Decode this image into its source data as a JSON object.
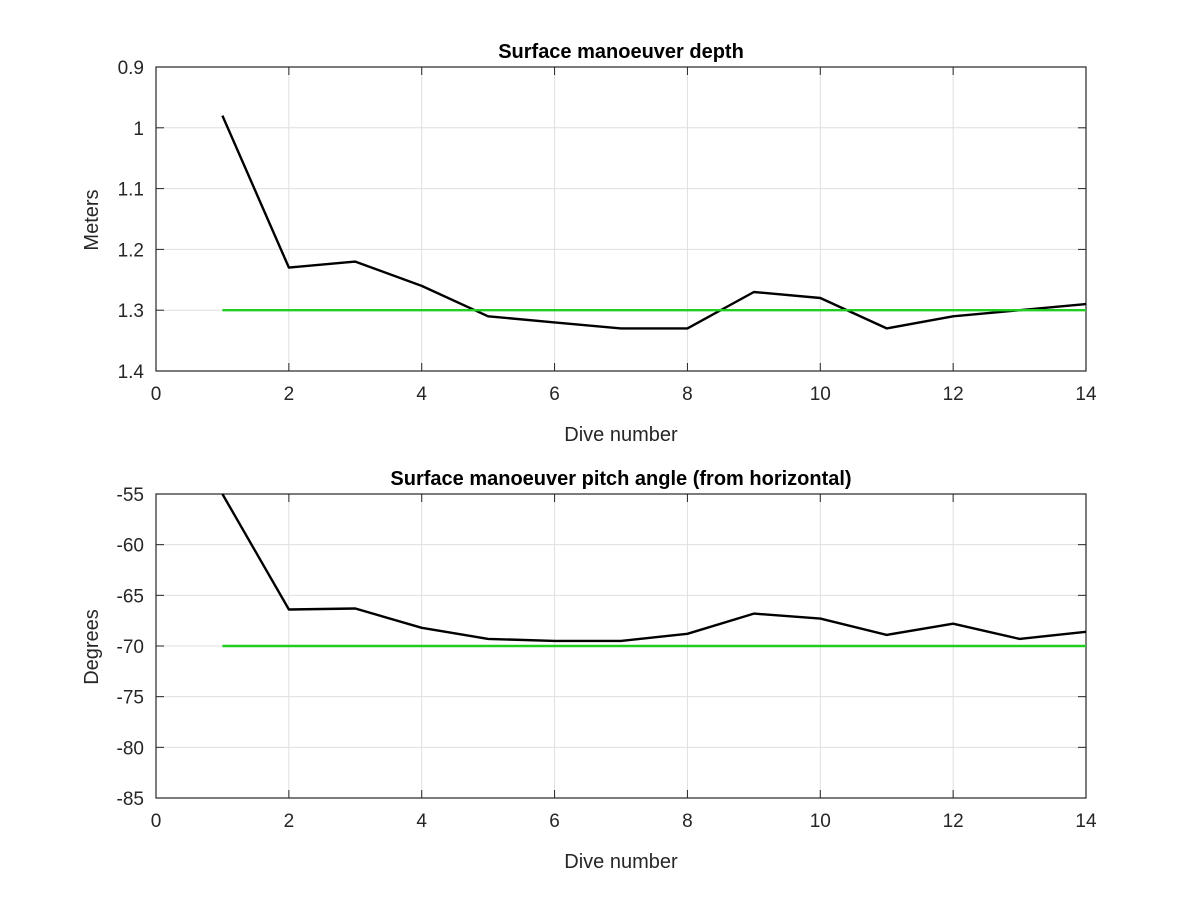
{
  "chart_data": [
    {
      "type": "line",
      "title": "Surface manoeuver depth",
      "xlabel": "Dive number",
      "ylabel": "Meters",
      "xlim": [
        0,
        14
      ],
      "ylim": [
        0.9,
        1.4
      ],
      "y_reversed": true,
      "grid": true,
      "xticks": [
        "0",
        "2",
        "4",
        "6",
        "8",
        "10",
        "12",
        "14"
      ],
      "yticks": [
        "0.9",
        "1",
        "1.1",
        "1.2",
        "1.3",
        "1.4"
      ],
      "series": [
        {
          "color": "#000000",
          "x": [
            1,
            2,
            3,
            4,
            5,
            6,
            7,
            8,
            9,
            10,
            11,
            12,
            13,
            14
          ],
          "y": [
            0.98,
            1.23,
            1.22,
            1.26,
            1.31,
            1.32,
            1.33,
            1.33,
            1.27,
            1.28,
            1.33,
            1.31,
            1.3,
            1.29
          ]
        },
        {
          "color": "#22cc22",
          "x": [
            1,
            14
          ],
          "y": [
            1.3,
            1.3
          ]
        }
      ]
    },
    {
      "type": "line",
      "title": "Surface manoeuver pitch angle (from horizontal)",
      "xlabel": "Dive number",
      "ylabel": "Degrees",
      "xlim": [
        0,
        14
      ],
      "ylim": [
        -85,
        -55
      ],
      "grid": true,
      "xticks": [
        "0",
        "2",
        "4",
        "6",
        "8",
        "10",
        "12",
        "14"
      ],
      "yticks": [
        "-55",
        "-60",
        "-65",
        "-70",
        "-75",
        "-80",
        "-85"
      ],
      "series": [
        {
          "color": "#000000",
          "x": [
            1,
            2,
            3,
            4,
            5,
            6,
            7,
            8,
            9,
            10,
            11,
            12,
            13,
            14
          ],
          "y": [
            -55,
            -66.4,
            -66.3,
            -68.2,
            -69.3,
            -69.5,
            -69.5,
            -68.8,
            -66.8,
            -67.3,
            -68.9,
            -67.8,
            -69.3,
            -68.6
          ]
        },
        {
          "color": "#22cc22",
          "x": [
            1,
            14
          ],
          "y": [
            -70,
            -70
          ]
        }
      ]
    }
  ]
}
